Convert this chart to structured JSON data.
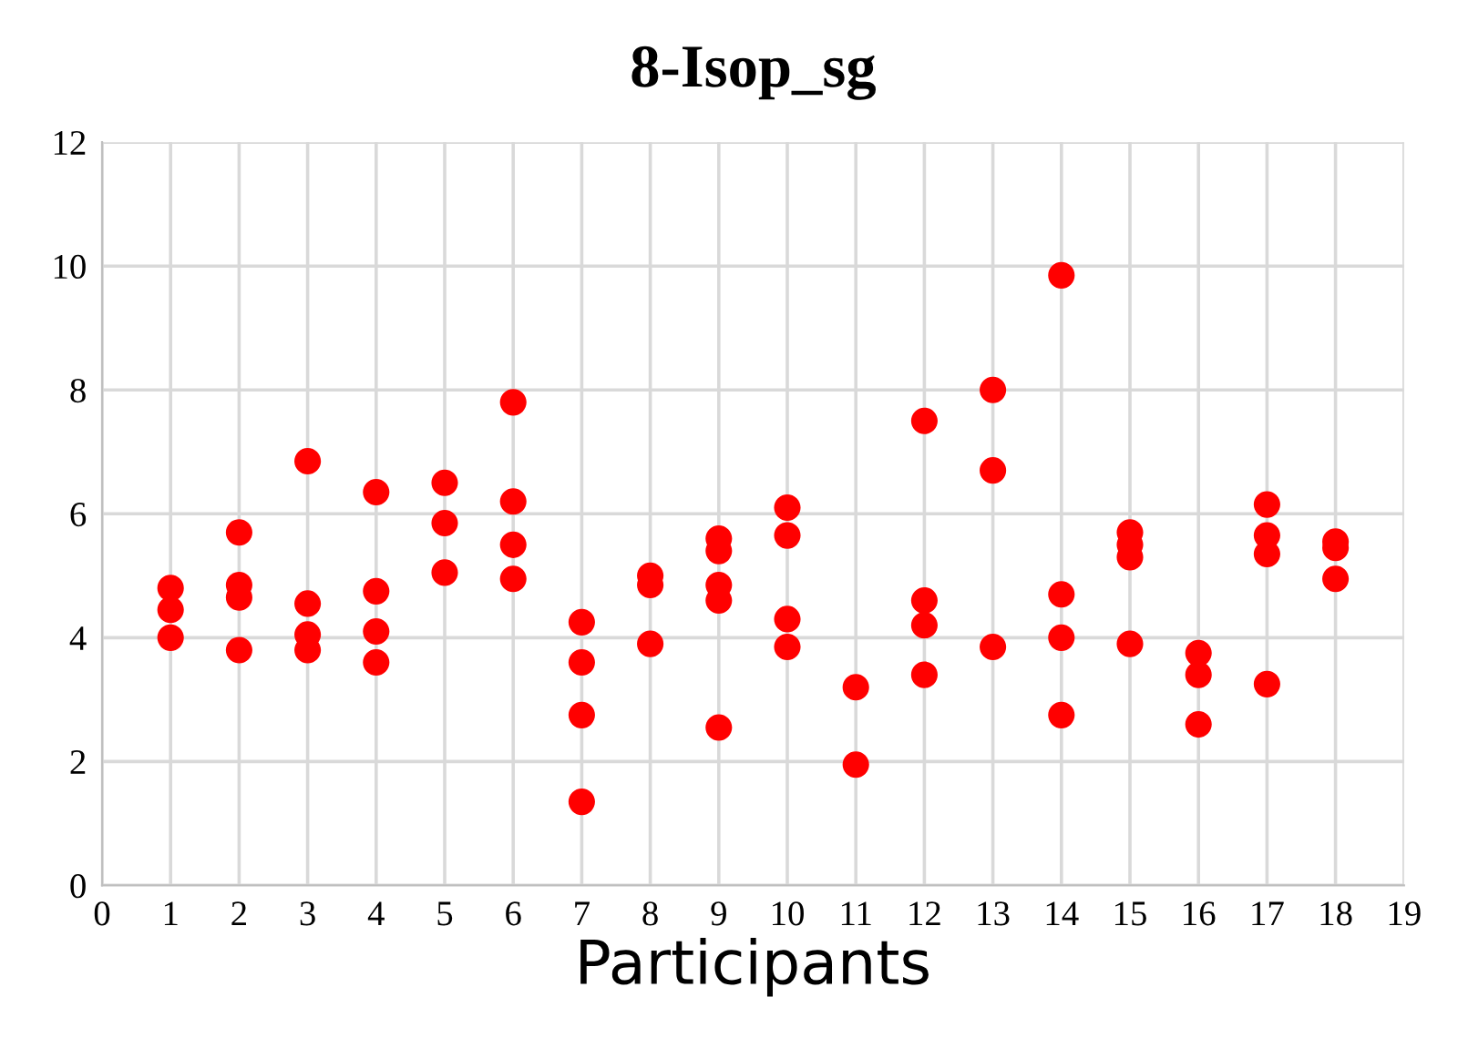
{
  "chart_data": {
    "type": "scatter",
    "title": "8-Isop_sg",
    "xlabel": "Participants",
    "x": [
      1,
      1,
      1,
      2,
      2,
      2,
      2,
      3,
      3,
      3,
      3,
      4,
      4,
      4,
      4,
      5,
      5,
      5,
      6,
      6,
      6,
      6,
      7,
      7,
      7,
      7,
      8,
      8,
      8,
      9,
      9,
      9,
      9,
      9,
      10,
      10,
      10,
      10,
      11,
      11,
      12,
      12,
      12,
      12,
      13,
      13,
      13,
      14,
      14,
      14,
      14,
      15,
      15,
      15,
      15,
      16,
      16,
      16,
      17,
      17,
      17,
      17,
      18,
      18,
      18
    ],
    "values": [
      4.8,
      4.45,
      4.0,
      5.7,
      4.85,
      4.65,
      3.8,
      6.85,
      4.55,
      4.05,
      3.8,
      6.35,
      4.75,
      4.1,
      3.6,
      6.5,
      5.85,
      5.05,
      7.8,
      6.2,
      5.5,
      4.95,
      4.25,
      3.6,
      2.75,
      1.35,
      5.0,
      4.85,
      3.9,
      5.6,
      5.4,
      4.85,
      4.6,
      2.55,
      6.1,
      5.65,
      4.3,
      3.85,
      3.2,
      1.95,
      7.5,
      4.6,
      4.2,
      3.4,
      8.0,
      6.7,
      3.85,
      9.85,
      4.7,
      4.0,
      2.75,
      5.7,
      5.5,
      5.3,
      3.9,
      3.75,
      3.4,
      2.6,
      6.15,
      5.65,
      5.35,
      3.25,
      5.55,
      5.45,
      4.95
    ],
    "color": "#ff0000",
    "marker": "circle",
    "xlim": [
      0,
      19
    ],
    "xticks": [
      0,
      1,
      2,
      3,
      4,
      5,
      6,
      7,
      8,
      9,
      10,
      11,
      12,
      13,
      14,
      15,
      16,
      17,
      18,
      19
    ],
    "ylim": [
      0,
      12
    ],
    "yticks": [
      0,
      2,
      4,
      6,
      8,
      10,
      12
    ],
    "grid": true
  }
}
